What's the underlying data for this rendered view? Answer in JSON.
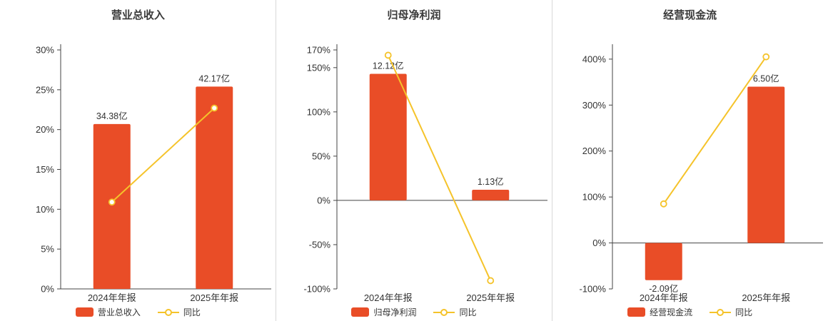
{
  "colors": {
    "bar": "#e94d27",
    "line": "#f5c32a",
    "axis": "#444444",
    "text": "#333333",
    "separator": "#d9d9d9"
  },
  "chart_data": [
    {
      "type": "bar+line",
      "title": "营业总收入",
      "categories": [
        "2024年年报",
        "2025年年报"
      ],
      "bar_series": {
        "name": "营业总收入",
        "unit": "亿",
        "values": [
          34.38,
          42.17
        ],
        "labels": [
          "34.38亿",
          "42.17亿"
        ],
        "axis_values": [
          20.7,
          25.4
        ]
      },
      "line_series": {
        "name": "同比",
        "values_pct": [
          10.9,
          22.7
        ]
      },
      "y_ticks": [
        30,
        25,
        20,
        15,
        10,
        5,
        0
      ],
      "ylim": [
        0,
        30
      ],
      "tick_suffix": "%",
      "grid": false,
      "legend_position": "bottom"
    },
    {
      "type": "bar+line",
      "title": "归母净利润",
      "categories": [
        "2024年年报",
        "2025年年报"
      ],
      "bar_series": {
        "name": "归母净利润",
        "unit": "亿",
        "values": [
          12.12,
          1.13
        ],
        "labels": [
          "12.12亿",
          "1.13亿"
        ],
        "axis_values": [
          143,
          12
        ]
      },
      "line_series": {
        "name": "同比",
        "values_pct": [
          164,
          -90.7
        ]
      },
      "y_ticks": [
        170,
        150,
        100,
        50,
        0,
        -50,
        -100
      ],
      "ylim": [
        -100,
        170
      ],
      "tick_suffix": "%",
      "grid": false,
      "legend_position": "bottom"
    },
    {
      "type": "bar+line",
      "title": "经营现金流",
      "categories": [
        "2024年年报",
        "2025年年报"
      ],
      "bar_series": {
        "name": "经营现金流",
        "unit": "亿",
        "values": [
          -2.09,
          6.5
        ],
        "labels": [
          "-2.09亿",
          "6.50亿"
        ],
        "axis_values": [
          -81,
          340
        ]
      },
      "line_series": {
        "name": "同比",
        "values_pct": [
          85,
          405
        ]
      },
      "y_ticks": [
        400,
        300,
        200,
        100,
        0,
        -100
      ],
      "ylim": [
        -100,
        420
      ],
      "tick_suffix": "%",
      "grid": false,
      "legend_position": "bottom"
    }
  ]
}
